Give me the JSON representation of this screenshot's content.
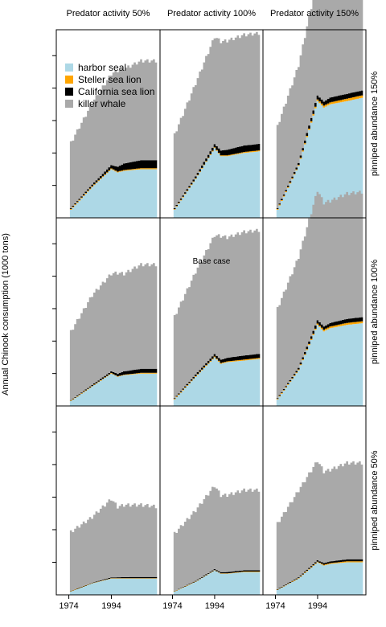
{
  "chart_data": {
    "type": "area",
    "stacked": true,
    "ylabel": "Annual Chinook consumption (1000 tons)",
    "col_labels": [
      "Predator activity 50%",
      "Predator activity 100%",
      "Predator activity 150%"
    ],
    "row_labels": [
      "pinniped abundance 150%",
      "pinniped abundance 100%",
      "pinniped abundance 50%"
    ],
    "base_case_label": "Base case",
    "x_tick_labels": [
      "1974",
      "1994"
    ],
    "x_ticks": [
      1974,
      1994
    ],
    "x_range": [
      1970,
      2015
    ],
    "y_range": [
      0,
      1.15
    ],
    "legend": [
      {
        "name": "harbor seal",
        "color": "#add8e6"
      },
      {
        "name": "Steller sea lion",
        "color": "#ffa500"
      },
      {
        "name": "California sea lion",
        "color": "#000000"
      },
      {
        "name": "killer whale",
        "color": "#a9a9a9"
      }
    ],
    "years": [
      1975,
      1985,
      1994,
      1997,
      2000,
      2008,
      2015
    ],
    "panels": [
      {
        "row": 0,
        "col": 0,
        "harbor_seal": [
          0.05,
          0.19,
          0.3,
          0.28,
          0.29,
          0.3,
          0.3
        ],
        "steller": [
          0.005,
          0.005,
          0.005,
          0.005,
          0.005,
          0.006,
          0.006
        ],
        "california": [
          0.005,
          0.01,
          0.02,
          0.03,
          0.04,
          0.05,
          0.05
        ],
        "killer_whale": [
          0.4,
          0.5,
          0.56,
          0.59,
          0.58,
          0.61,
          0.61
        ]
      },
      {
        "row": 0,
        "col": 1,
        "harbor_seal": [
          0.05,
          0.24,
          0.43,
          0.38,
          0.38,
          0.4,
          0.41
        ],
        "steller": [
          0.004,
          0.004,
          0.005,
          0.005,
          0.005,
          0.006,
          0.006
        ],
        "california": [
          0.006,
          0.012,
          0.02,
          0.03,
          0.035,
          0.04,
          0.04
        ],
        "killer_whale": [
          0.45,
          0.57,
          0.66,
          0.67,
          0.67,
          0.68,
          0.68
        ]
      },
      {
        "row": 0,
        "col": 2,
        "harbor_seal": [
          0.05,
          0.32,
          0.72,
          0.68,
          0.7,
          0.72,
          0.74
        ],
        "steller": [
          0.005,
          0.006,
          0.01,
          0.012,
          0.012,
          0.015,
          0.015
        ],
        "california": [
          0.006,
          0.012,
          0.025,
          0.025,
          0.03,
          0.03,
          0.03
        ],
        "killer_whale": [
          0.5,
          0.6,
          0.72,
          0.66,
          0.67,
          0.68,
          0.68
        ]
      },
      {
        "row": 1,
        "col": 0,
        "harbor_seal": [
          0.03,
          0.12,
          0.2,
          0.18,
          0.19,
          0.2,
          0.2
        ],
        "steller": [
          0.003,
          0.003,
          0.003,
          0.003,
          0.003,
          0.004,
          0.004
        ],
        "california": [
          0.003,
          0.007,
          0.01,
          0.015,
          0.02,
          0.025,
          0.025
        ],
        "killer_whale": [
          0.42,
          0.55,
          0.6,
          0.62,
          0.6,
          0.64,
          0.64
        ]
      },
      {
        "row": 1,
        "col": 1,
        "harbor_seal": [
          0.04,
          0.18,
          0.3,
          0.26,
          0.27,
          0.28,
          0.29
        ],
        "steller": [
          0.004,
          0.004,
          0.005,
          0.005,
          0.005,
          0.006,
          0.006
        ],
        "california": [
          0.004,
          0.01,
          0.015,
          0.02,
          0.022,
          0.025,
          0.025
        ],
        "killer_whale": [
          0.5,
          0.63,
          0.73,
          0.76,
          0.74,
          0.76,
          0.76
        ]
      },
      {
        "row": 1,
        "col": 2,
        "harbor_seal": [
          0.04,
          0.22,
          0.5,
          0.46,
          0.48,
          0.5,
          0.51
        ],
        "steller": [
          0.004,
          0.005,
          0.008,
          0.01,
          0.01,
          0.012,
          0.012
        ],
        "california": [
          0.004,
          0.01,
          0.02,
          0.02,
          0.022,
          0.025,
          0.025
        ],
        "killer_whale": [
          0.55,
          0.68,
          0.8,
          0.76,
          0.75,
          0.77,
          0.77
        ]
      },
      {
        "row": 2,
        "col": 0,
        "harbor_seal": [
          0.02,
          0.07,
          0.1,
          0.1,
          0.1,
          0.1,
          0.1
        ],
        "steller": [
          0.002,
          0.002,
          0.002,
          0.002,
          0.002,
          0.002,
          0.002
        ],
        "california": [
          0.002,
          0.003,
          0.005,
          0.006,
          0.007,
          0.008,
          0.008
        ],
        "killer_whale": [
          0.36,
          0.4,
          0.48,
          0.43,
          0.44,
          0.44,
          0.43
        ]
      },
      {
        "row": 2,
        "col": 1,
        "harbor_seal": [
          0.02,
          0.08,
          0.15,
          0.13,
          0.13,
          0.14,
          0.14
        ],
        "steller": [
          0.002,
          0.002,
          0.002,
          0.002,
          0.002,
          0.003,
          0.003
        ],
        "california": [
          0.002,
          0.004,
          0.006,
          0.007,
          0.008,
          0.008,
          0.008
        ],
        "killer_whale": [
          0.35,
          0.43,
          0.51,
          0.47,
          0.47,
          0.49,
          0.49
        ]
      },
      {
        "row": 2,
        "col": 2,
        "harbor_seal": [
          0.03,
          0.1,
          0.2,
          0.18,
          0.19,
          0.2,
          0.2
        ],
        "steller": [
          0.002,
          0.003,
          0.004,
          0.005,
          0.005,
          0.006,
          0.006
        ],
        "california": [
          0.003,
          0.005,
          0.008,
          0.01,
          0.01,
          0.012,
          0.012
        ],
        "killer_whale": [
          0.4,
          0.53,
          0.61,
          0.56,
          0.56,
          0.59,
          0.59
        ]
      }
    ]
  }
}
